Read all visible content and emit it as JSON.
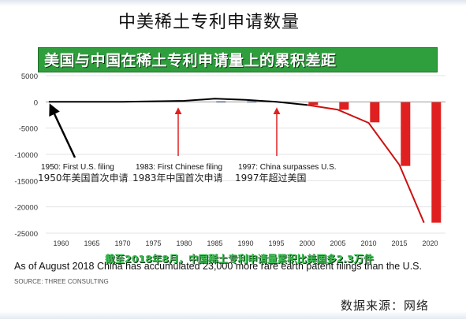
{
  "slide": {
    "title": "中美稀土专利申请数量",
    "banner": "美国与中国在稀土专利申请量上的累积差距",
    "caption": "As of August 2018 China has accumulated 23,000 more rare earth patent filings than the U.S.",
    "caption_overlay": "截至2018年8月，中国稀土专利申请量累积比美国多2.3万件",
    "source": "SOURCE: THREE CONSULTING",
    "data_source": "数据来源：网络"
  },
  "chart_data": {
    "type": "bar",
    "x_ticks": [
      "1960",
      "1965",
      "1970",
      "1975",
      "1980",
      "1985",
      "1990",
      "1995",
      "2000",
      "2005",
      "2010",
      "2015",
      "2020"
    ],
    "y_ticks": [
      "5000",
      "0",
      "-5000",
      "-10000",
      "-15000",
      "-20000",
      "-25000"
    ],
    "ylim": [
      -25000,
      5000
    ],
    "xlim": [
      1957.5,
      2022.5
    ],
    "bars": [
      {
        "year": 1986,
        "value": 150,
        "color": "#4f7fbf"
      },
      {
        "year": 1991,
        "value": 150,
        "color": "#4f7fbf"
      },
      {
        "year": 2001,
        "value": -600,
        "color": "#e02020"
      },
      {
        "year": 2006,
        "value": -1500,
        "color": "#e02020"
      },
      {
        "year": 2011,
        "value": -3900,
        "color": "#e02020"
      },
      {
        "year": 2016,
        "value": -12200,
        "color": "#e02020"
      },
      {
        "year": 2021,
        "value": -23000,
        "color": "#e02020"
      }
    ],
    "line": {
      "color": "#000000",
      "color_after_2000": "#cc1111",
      "points": [
        [
          1958,
          0
        ],
        [
          1970,
          0
        ],
        [
          1980,
          200
        ],
        [
          1985,
          600
        ],
        [
          1990,
          400
        ],
        [
          1995,
          0
        ],
        [
          2000,
          -600
        ],
        [
          2005,
          -1500
        ],
        [
          2010,
          -4000
        ],
        [
          2015,
          -12000
        ],
        [
          2019,
          -23000
        ]
      ]
    },
    "annotations": [
      {
        "line1": "1950: First U.S. filing",
        "line2": "1950年美国首次申请"
      },
      {
        "line1": "1983: First Chinese filing",
        "line2": "1983年中国首次申请"
      },
      {
        "line1": "1997: China surpasses U.S.",
        "line2": "1997年超过美国"
      }
    ]
  }
}
